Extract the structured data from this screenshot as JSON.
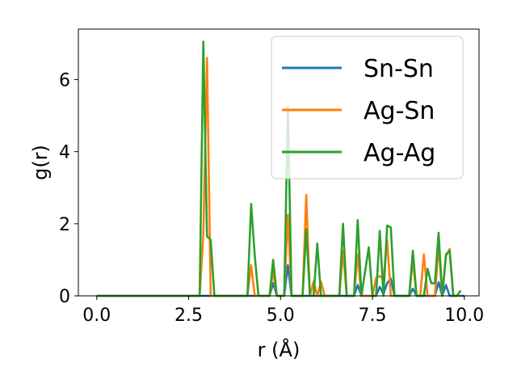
{
  "chart_data": {
    "type": "line",
    "xlabel": "r (Å)",
    "ylabel": "g(r)",
    "xlim": [
      -0.5,
      10.4
    ],
    "ylim": [
      0,
      7.4
    ],
    "xticks": [
      0.0,
      2.5,
      5.0,
      7.5,
      10.0
    ],
    "xtick_labels": [
      "0.0",
      "2.5",
      "5.0",
      "7.5",
      "10.0"
    ],
    "yticks": [
      0,
      2,
      4,
      6
    ],
    "ytick_labels": [
      "0",
      "2",
      "4",
      "6"
    ],
    "grid": false,
    "legend_position": "top-right",
    "series": [
      {
        "name": "Sn-Sn",
        "color": "#1f77b4",
        "x": [
          0.0,
          4.1,
          4.2,
          4.3,
          4.7,
          4.8,
          4.9,
          5.1,
          5.2,
          5.3,
          7.0,
          7.1,
          7.2,
          7.6,
          7.7,
          7.8,
          7.9,
          8.0,
          8.1,
          8.5,
          8.6,
          8.7,
          9.2,
          9.3,
          9.4,
          9.5,
          9.6,
          10.0
        ],
        "y": [
          0.0,
          0.0,
          0.0,
          0.0,
          0.0,
          0.35,
          0.0,
          0.0,
          0.85,
          0.0,
          0.0,
          0.3,
          0.0,
          0.0,
          0.25,
          0.05,
          0.35,
          0.48,
          0.0,
          0.0,
          0.2,
          0.0,
          0.0,
          0.38,
          0.0,
          0.3,
          0.0,
          0.0
        ]
      },
      {
        "name": "Ag-Sn",
        "color": "#ff7f0e",
        "x": [
          0.0,
          2.8,
          2.9,
          3.0,
          3.1,
          3.2,
          4.1,
          4.2,
          4.3,
          4.7,
          4.8,
          4.9,
          5.1,
          5.2,
          5.3,
          5.6,
          5.7,
          5.8,
          5.9,
          6.0,
          6.1,
          6.2,
          6.6,
          6.7,
          6.8,
          7.0,
          7.1,
          7.2,
          7.5,
          7.6,
          7.7,
          7.8,
          7.9,
          8.0,
          8.1,
          8.5,
          8.6,
          8.7,
          8.8,
          8.9,
          9.0,
          9.1,
          9.2,
          9.3,
          9.4,
          9.5,
          9.6,
          9.7,
          9.8,
          9.9
        ],
        "y": [
          0.0,
          0.0,
          1.7,
          6.6,
          0.0,
          0.0,
          0.0,
          0.85,
          0.0,
          0.0,
          0.7,
          0.0,
          0.0,
          2.25,
          0.0,
          0.0,
          2.8,
          0.0,
          0.4,
          0.0,
          0.4,
          0.0,
          0.0,
          1.25,
          0.0,
          0.0,
          1.15,
          0.0,
          0.0,
          0.5,
          0.55,
          0.45,
          1.55,
          0.0,
          0.0,
          0.0,
          1.0,
          0.0,
          0.0,
          1.15,
          0.0,
          0.0,
          0.0,
          1.4,
          0.0,
          1.1,
          1.3,
          0.0,
          0.0,
          0.0
        ]
      },
      {
        "name": "Ag-Ag",
        "color": "#2ca02c",
        "x": [
          0.0,
          2.8,
          2.9,
          3.0,
          3.1,
          3.2,
          4.1,
          4.2,
          4.3,
          4.4,
          4.7,
          4.8,
          4.9,
          5.1,
          5.2,
          5.3,
          5.6,
          5.7,
          5.8,
          5.9,
          6.0,
          6.1,
          6.6,
          6.7,
          6.8,
          7.0,
          7.1,
          7.2,
          7.4,
          7.5,
          7.6,
          7.7,
          7.8,
          7.9,
          8.0,
          8.1,
          8.5,
          8.6,
          8.7,
          8.9,
          9.0,
          9.1,
          9.2,
          9.3,
          9.4,
          9.5,
          9.6,
          9.7,
          9.8,
          9.9
        ],
        "y": [
          0.0,
          0.0,
          7.05,
          1.65,
          1.55,
          0.0,
          0.0,
          2.55,
          1.1,
          0.0,
          0.0,
          1.0,
          0.0,
          0.0,
          5.25,
          0.0,
          0.0,
          1.85,
          0.0,
          0.0,
          1.45,
          0.0,
          0.0,
          2.0,
          0.0,
          0.0,
          2.1,
          0.0,
          1.35,
          0.0,
          0.0,
          1.8,
          0.0,
          1.95,
          1.9,
          0.0,
          0.0,
          1.25,
          0.0,
          0.0,
          0.75,
          0.35,
          0.35,
          1.75,
          0.0,
          1.15,
          1.25,
          0.0,
          0.0,
          0.15
        ]
      }
    ]
  }
}
